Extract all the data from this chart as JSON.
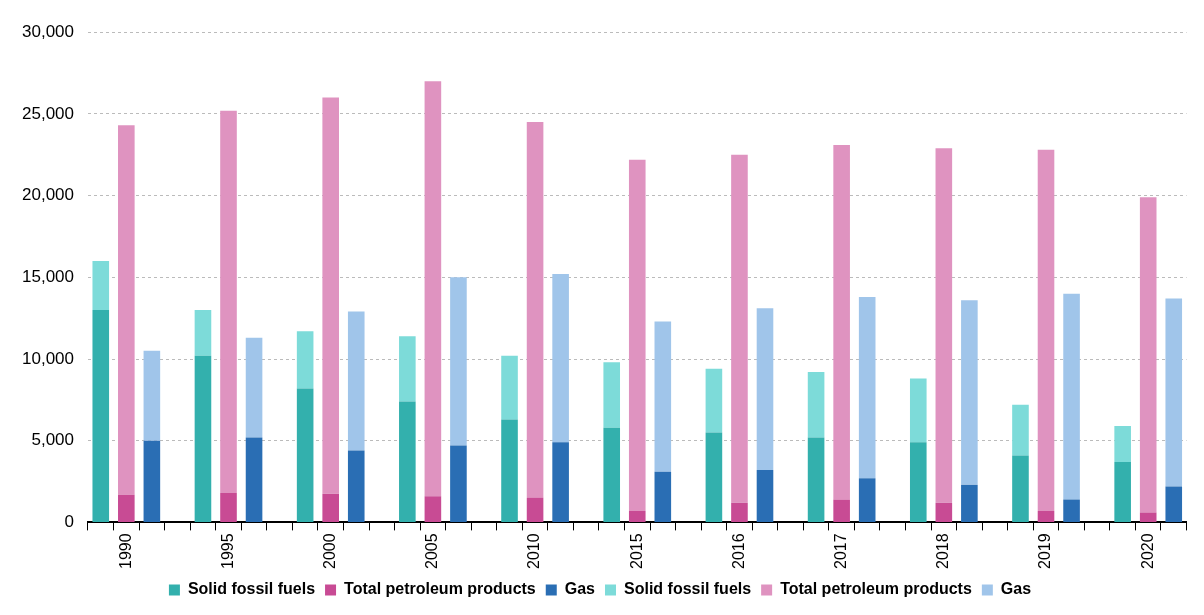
{
  "chart_data": {
    "type": "bar",
    "stacked": true,
    "categories": [
      null,
      "1990",
      null,
      null,
      null,
      "1995",
      null,
      null,
      null,
      "2000",
      null,
      null,
      null,
      "2005",
      null,
      null,
      null,
      "2010",
      null,
      null,
      null,
      "2015",
      null,
      null,
      null,
      "2016",
      null,
      null,
      null,
      "2017",
      null,
      null,
      null,
      "2018",
      null,
      null,
      null,
      "2019",
      null,
      null,
      null,
      "2020",
      null
    ],
    "series": [
      {
        "name": "Solid fossil fuels",
        "color": "#33b0ad",
        "values": [
          13000,
          null,
          null,
          null,
          10200,
          null,
          null,
          null,
          8200,
          null,
          null,
          null,
          7400,
          null,
          null,
          null,
          6300,
          null,
          null,
          null,
          5800,
          null,
          null,
          null,
          5500,
          null,
          null,
          null,
          5200,
          null,
          null,
          null,
          4900,
          null,
          null,
          null,
          4100,
          null,
          null,
          null,
          3700,
          null,
          null
        ]
      },
      {
        "name": "Total petroleum products",
        "color": "#c84b94",
        "values": [
          null,
          1700,
          null,
          null,
          null,
          1800,
          null,
          null,
          null,
          1750,
          null,
          null,
          null,
          1600,
          null,
          null,
          null,
          1500,
          null,
          null,
          null,
          700,
          null,
          null,
          null,
          1200,
          null,
          null,
          null,
          1400,
          null,
          null,
          null,
          1200,
          null,
          null,
          null,
          700,
          null,
          null,
          null,
          600,
          null
        ]
      },
      {
        "name": "Gas",
        "color": "#2a6eb4",
        "values": [
          null,
          null,
          5000,
          null,
          null,
          null,
          5200,
          null,
          null,
          null,
          4400,
          null,
          null,
          null,
          4700,
          null,
          null,
          null,
          4900,
          null,
          null,
          null,
          3100,
          null,
          null,
          null,
          3200,
          null,
          null,
          null,
          2700,
          null,
          null,
          null,
          2300,
          null,
          null,
          null,
          1400,
          null,
          null,
          null,
          2200
        ]
      },
      {
        "name": "Solid fossil fuels",
        "color": "#7ddbd9",
        "values": [
          3000,
          null,
          null,
          null,
          2800,
          null,
          null,
          null,
          3500,
          null,
          null,
          null,
          4000,
          null,
          null,
          null,
          3900,
          null,
          null,
          null,
          4000,
          null,
          null,
          null,
          3900,
          null,
          null,
          null,
          4000,
          null,
          null,
          null,
          3900,
          null,
          null,
          null,
          3100,
          null,
          null,
          null,
          2200,
          null,
          null
        ]
      },
      {
        "name": "Total petroleum products",
        "color": "#df93c0",
        "values": [
          null,
          22600,
          null,
          null,
          null,
          23400,
          null,
          null,
          null,
          24250,
          null,
          null,
          null,
          25400,
          null,
          null,
          null,
          23000,
          null,
          null,
          null,
          21500,
          null,
          null,
          null,
          21300,
          null,
          null,
          null,
          21700,
          null,
          null,
          null,
          21700,
          null,
          null,
          null,
          22100,
          null,
          null,
          null,
          19300,
          null
        ]
      },
      {
        "name": "Gas",
        "color": "#a0c5ea",
        "values": [
          null,
          null,
          5500,
          null,
          null,
          null,
          6100,
          null,
          null,
          null,
          8500,
          null,
          null,
          null,
          10300,
          null,
          null,
          null,
          10300,
          null,
          null,
          null,
          9200,
          null,
          null,
          null,
          9900,
          null,
          null,
          null,
          11100,
          null,
          null,
          null,
          11300,
          null,
          null,
          null,
          12600,
          null,
          null,
          null,
          11500
        ]
      }
    ],
    "ylim": [
      0,
      30000
    ],
    "yticks": [
      0,
      {
        "value": 5000,
        "label": "5,000"
      },
      {
        "value": 10000,
        "label": "10,000"
      },
      {
        "value": 15000,
        "label": "15,000"
      },
      {
        "value": 20000,
        "label": "20,000"
      },
      {
        "value": 25000,
        "label": "25,000"
      },
      {
        "value": 30000,
        "label": "30,000"
      }
    ],
    "grid": "y",
    "legend": "bottom"
  }
}
